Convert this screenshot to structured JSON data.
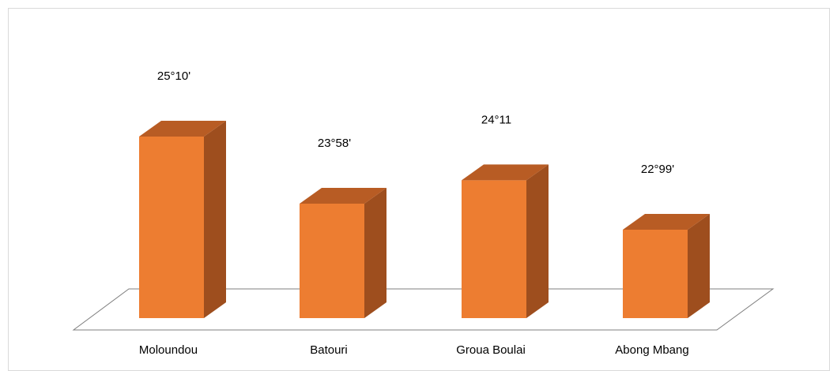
{
  "chart_data": {
    "type": "bar",
    "style": "3d-column",
    "categories": [
      "Moloundou",
      "Batouri",
      "Groua Boulai",
      "Abong Mbang"
    ],
    "values": [
      25.1,
      23.58,
      24.11,
      22.99
    ],
    "data_labels": [
      "25°10'",
      "23°58'",
      "24°11",
      "22°99'"
    ],
    "title": "",
    "xlabel": "",
    "ylabel": "",
    "grid": false,
    "legend": "none",
    "colors": {
      "front": "#ED7D31",
      "side": "#9E4E1E",
      "top": "#B85C24",
      "floor": "#ffffff",
      "floor_edge": "#7f7f7f"
    }
  }
}
